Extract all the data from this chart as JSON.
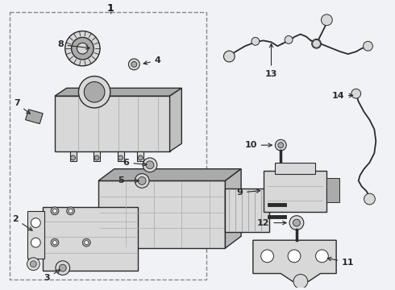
{
  "bg_color": "#f0f2f5",
  "line_color": "#2a2a2a",
  "box_bg": "#f0f2f5",
  "label_color": "#111111",
  "box_border": "#888888",
  "white": "#ffffff",
  "gray_light": "#d8d8d8",
  "gray_mid": "#aaaaaa",
  "gray_dark": "#777777"
}
